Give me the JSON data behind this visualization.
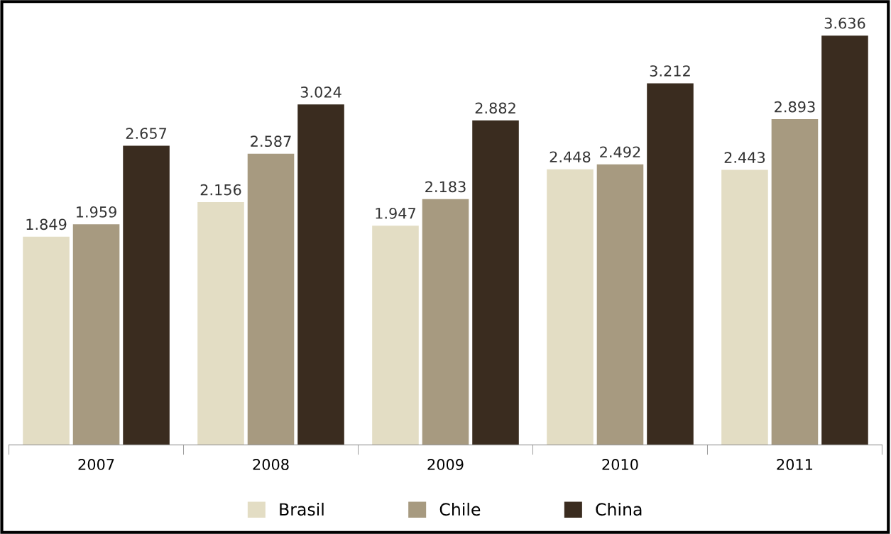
{
  "chart_data": {
    "type": "bar",
    "categories": [
      "2007",
      "2008",
      "2009",
      "2010",
      "2011"
    ],
    "series": [
      {
        "name": "Brasil",
        "color": "#e3ddc4",
        "values": [
          1.849,
          2.156,
          1.947,
          2.448,
          2.443
        ]
      },
      {
        "name": "Chile",
        "color": "#a79a80",
        "values": [
          1.959,
          2.587,
          2.183,
          2.492,
          2.893
        ]
      },
      {
        "name": "China",
        "color": "#3a2c1f",
        "values": [
          2.657,
          3.024,
          2.882,
          3.212,
          3.636
        ]
      }
    ],
    "data_labels": true,
    "legend": "bottom",
    "tick_labels": "x"
  }
}
